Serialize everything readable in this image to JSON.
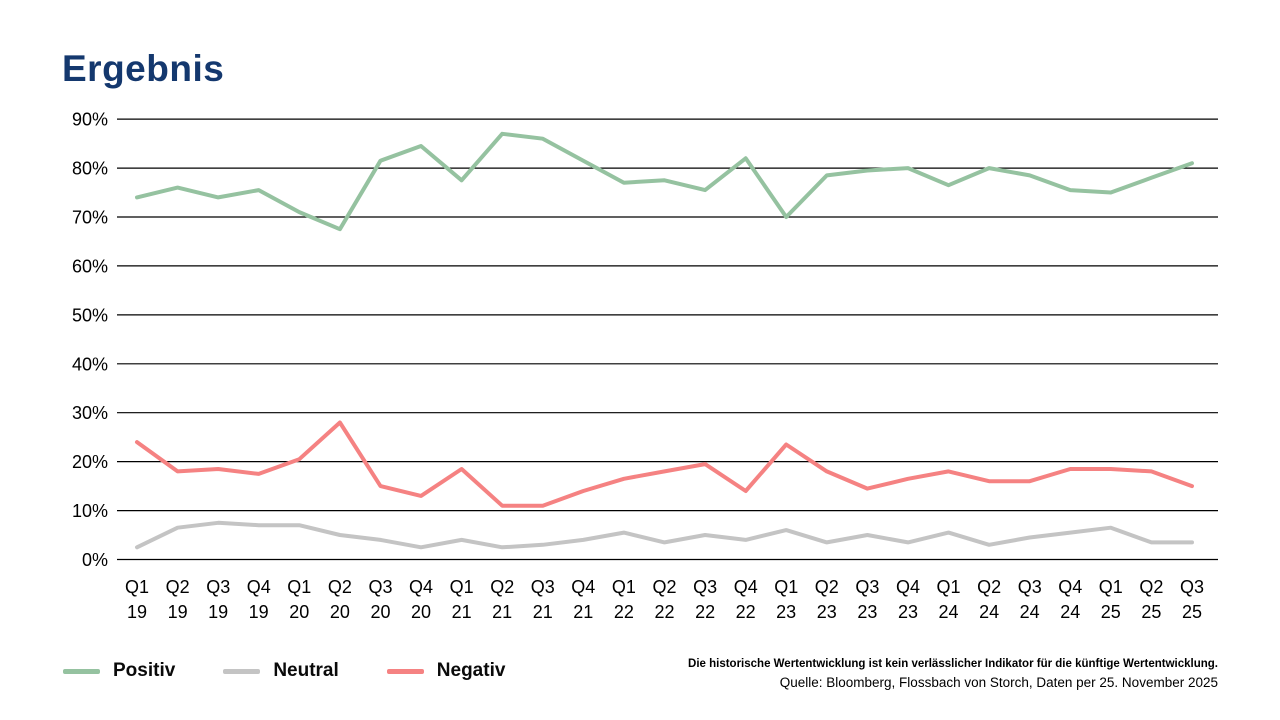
{
  "title": "Ergebnis",
  "title_color": "#14386e",
  "chart_data": {
    "type": "line",
    "categories": [
      "Q1 19",
      "Q2 19",
      "Q3 19",
      "Q4 19",
      "Q1 20",
      "Q2 20",
      "Q3 20",
      "Q4 20",
      "Q1 21",
      "Q2 21",
      "Q3 21",
      "Q4 21",
      "Q1 22",
      "Q2 22",
      "Q3 22",
      "Q4 22",
      "Q1 23",
      "Q2 23",
      "Q3 23",
      "Q4 23",
      "Q1 24",
      "Q2 24",
      "Q3 24",
      "Q4 24",
      "Q1 25",
      "Q2 25",
      "Q3 25"
    ],
    "series": [
      {
        "name": "Positiv",
        "color": "#95c2a0",
        "values": [
          74,
          76,
          74,
          75.5,
          71,
          67.5,
          81.5,
          84.5,
          77.5,
          87,
          86,
          81.5,
          77,
          77.5,
          75.5,
          82,
          70,
          78.5,
          79.5,
          80,
          76.5,
          80,
          78.5,
          75.5,
          75,
          78,
          81
        ]
      },
      {
        "name": "Neutral",
        "color": "#c4c4c4",
        "values": [
          2.5,
          6.5,
          7.5,
          7,
          7,
          5,
          4,
          2.5,
          4,
          2.5,
          3,
          4,
          5.5,
          3.5,
          5,
          4,
          6,
          3.5,
          5,
          3.5,
          5.5,
          3,
          4.5,
          5.5,
          6.5,
          3.5,
          3.5
        ]
      },
      {
        "name": "Negativ",
        "color": "#f58282",
        "values": [
          24,
          18,
          18.5,
          17.5,
          20.5,
          28,
          15,
          13,
          18.5,
          11,
          11,
          14,
          16.5,
          18,
          19.5,
          14,
          23.5,
          18,
          14.5,
          16.5,
          18,
          16,
          16,
          18.5,
          18.5,
          18,
          15
        ]
      }
    ],
    "ylim": [
      0,
      90
    ],
    "ytick_step": 10,
    "ytick_suffix": "%",
    "grid": "horizontal",
    "gridline_color": "#000000",
    "legend_position": "bottom-left"
  },
  "footer": {
    "disclaimer": "Die historische Wertentwicklung ist kein verlässlicher Indikator für die künftige Wertentwicklung.",
    "source": "Quelle: Bloomberg, Flossbach von Storch, Daten per 25. November 2025"
  }
}
